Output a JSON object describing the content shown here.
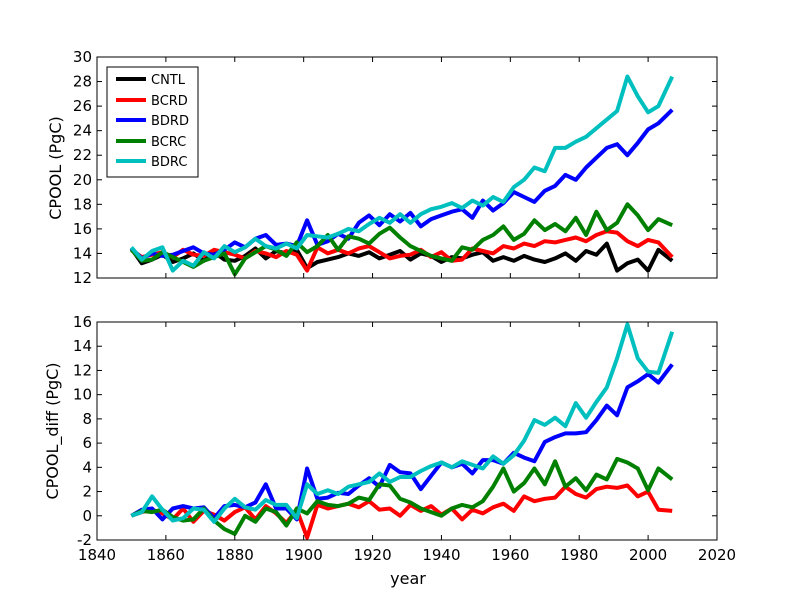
{
  "chart_data": [
    {
      "type": "line",
      "title": "",
      "xlabel": "",
      "ylabel": "CPOOL (PgC)",
      "xlim": [
        1840,
        2020
      ],
      "ylim": [
        12,
        30
      ],
      "yticks": [
        12,
        14,
        16,
        18,
        20,
        22,
        24,
        26,
        28,
        30
      ],
      "show_x_tick_labels": false,
      "legend": "top-left",
      "x": [
        1850,
        1853,
        1856,
        1859,
        1862,
        1865,
        1868,
        1871,
        1874,
        1877,
        1880,
        1883,
        1886,
        1889,
        1892,
        1895,
        1898,
        1901,
        1904,
        1907,
        1910,
        1913,
        1916,
        1919,
        1922,
        1925,
        1928,
        1931,
        1934,
        1937,
        1940,
        1943,
        1946,
        1949,
        1952,
        1955,
        1958,
        1961,
        1964,
        1967,
        1970,
        1973,
        1976,
        1979,
        1982,
        1985,
        1988,
        1991,
        1994,
        1997,
        2000,
        2003,
        2007
      ],
      "series": [
        {
          "name": "CNTL",
          "color": "#000000",
          "values": [
            14.4,
            13.2,
            13.5,
            13.9,
            13.3,
            13.6,
            14.0,
            13.4,
            14.1,
            13.5,
            13.4,
            13.8,
            14.4,
            13.6,
            14.2,
            14.0,
            14.3,
            12.8,
            13.3,
            13.5,
            13.7,
            14.0,
            13.8,
            14.1,
            13.6,
            13.9,
            14.2,
            13.5,
            14.0,
            13.8,
            13.3,
            13.7,
            13.6,
            13.9,
            14.1,
            13.4,
            13.7,
            13.4,
            13.8,
            13.5,
            13.3,
            13.6,
            14.0,
            13.4,
            14.2,
            13.9,
            14.8,
            12.6,
            13.2,
            13.5,
            12.6,
            14.3,
            13.4
          ]
        },
        {
          "name": "BCRD",
          "color": "#ff0000",
          "values": [
            14.3,
            13.7,
            13.9,
            14.1,
            13.7,
            14.3,
            13.9,
            13.8,
            14.3,
            14.1,
            13.9,
            13.6,
            14.2,
            14.0,
            13.7,
            14.2,
            13.9,
            12.6,
            14.5,
            14.0,
            14.3,
            14.0,
            14.4,
            14.6,
            14.1,
            13.6,
            13.8,
            13.9,
            14.3,
            13.7,
            14.1,
            13.4,
            13.5,
            14.4,
            14.2,
            14.0,
            14.6,
            14.4,
            14.8,
            14.6,
            15.0,
            14.9,
            15.1,
            15.3,
            15.0,
            15.5,
            15.8,
            15.7,
            15.0,
            14.6,
            15.1,
            14.9,
            13.7
          ]
        },
        {
          "name": "BDRD",
          "color": "#0000ff",
          "values": [
            14.4,
            13.6,
            14.0,
            13.8,
            13.9,
            14.2,
            14.5,
            14.0,
            13.9,
            14.3,
            14.9,
            14.5,
            15.2,
            15.5,
            14.7,
            14.8,
            14.6,
            16.7,
            14.7,
            15.0,
            15.6,
            15.2,
            16.5,
            17.1,
            16.3,
            17.2,
            16.6,
            17.3,
            16.2,
            16.8,
            17.1,
            17.4,
            17.6,
            16.9,
            18.3,
            17.5,
            18.1,
            19.0,
            18.6,
            18.2,
            19.1,
            19.5,
            20.4,
            20.0,
            21.0,
            21.8,
            22.6,
            22.9,
            22.0,
            23.0,
            24.1,
            24.6,
            25.7
          ]
        },
        {
          "name": "BCRC",
          "color": "#008000",
          "values": [
            14.3,
            13.4,
            13.5,
            14.1,
            13.7,
            13.3,
            12.9,
            13.4,
            13.7,
            14.0,
            12.3,
            13.6,
            14.1,
            14.6,
            14.3,
            13.8,
            14.9,
            14.1,
            14.6,
            15.5,
            14.3,
            15.4,
            15.2,
            14.8,
            15.6,
            16.1,
            15.3,
            14.6,
            14.2,
            13.8,
            13.6,
            13.4,
            14.5,
            14.3,
            15.1,
            15.5,
            16.2,
            15.1,
            15.6,
            16.7,
            15.9,
            16.4,
            15.8,
            16.9,
            15.5,
            17.4,
            15.9,
            16.5,
            18.0,
            17.1,
            15.9,
            16.8,
            16.3
          ]
        },
        {
          "name": "BDRC",
          "color": "#00bfbf",
          "values": [
            14.5,
            13.5,
            14.2,
            14.5,
            12.6,
            13.4,
            13.0,
            14.1,
            13.6,
            14.6,
            14.1,
            14.5,
            15.2,
            14.6,
            14.4,
            14.8,
            14.4,
            15.5,
            15.4,
            15.3,
            15.6,
            16.0,
            15.8,
            16.4,
            16.9,
            16.5,
            17.2,
            16.5,
            17.2,
            17.6,
            17.8,
            18.1,
            17.7,
            18.3,
            17.9,
            18.6,
            18.2,
            19.4,
            20.0,
            21.0,
            20.7,
            22.6,
            22.6,
            23.1,
            23.5,
            24.2,
            24.9,
            25.6,
            28.4,
            26.8,
            25.5,
            26.0,
            28.4
          ]
        }
      ]
    },
    {
      "type": "line",
      "title": "",
      "xlabel": "year",
      "ylabel": "CPOOL_diff (PgC)",
      "xlim": [
        1840,
        2020
      ],
      "ylim": [
        -2,
        16
      ],
      "xticks": [
        1840,
        1860,
        1880,
        1900,
        1920,
        1940,
        1960,
        1980,
        2000,
        2020
      ],
      "yticks": [
        -2,
        0,
        2,
        4,
        6,
        8,
        10,
        12,
        14,
        16
      ],
      "show_x_tick_labels": true,
      "x": [
        1850,
        1853,
        1856,
        1859,
        1862,
        1865,
        1868,
        1871,
        1874,
        1877,
        1880,
        1883,
        1886,
        1889,
        1892,
        1895,
        1898,
        1901,
        1904,
        1907,
        1910,
        1913,
        1916,
        1919,
        1922,
        1925,
        1928,
        1931,
        1934,
        1937,
        1940,
        1943,
        1946,
        1949,
        1952,
        1955,
        1958,
        1961,
        1964,
        1967,
        1970,
        1973,
        1976,
        1979,
        1982,
        1985,
        1988,
        1991,
        1994,
        1997,
        2000,
        2003,
        2007
      ],
      "series": [
        {
          "name": "BCRD",
          "color": "#ff0000",
          "values": [
            0.0,
            0.3,
            0.5,
            0.2,
            -0.3,
            0.6,
            -0.5,
            0.4,
            0.1,
            -0.4,
            0.3,
            0.7,
            -0.3,
            0.8,
            0.2,
            -0.6,
            0.5,
            -1.8,
            0.9,
            0.6,
            0.8,
            1.0,
            0.7,
            1.2,
            0.5,
            0.6,
            0.0,
            0.9,
            0.4,
            0.8,
            0.1,
            0.6,
            -0.3,
            0.5,
            0.2,
            0.7,
            1.0,
            0.4,
            1.6,
            1.2,
            1.4,
            1.5,
            2.4,
            1.8,
            1.5,
            2.2,
            2.4,
            2.3,
            2.5,
            1.6,
            2.0,
            0.5,
            0.4
          ]
        },
        {
          "name": "BDRD",
          "color": "#0000ff",
          "values": [
            0.0,
            0.5,
            0.6,
            -0.3,
            0.6,
            0.8,
            0.6,
            0.7,
            -0.2,
            0.8,
            0.9,
            0.7,
            1.1,
            2.6,
            0.6,
            0.6,
            -0.3,
            3.9,
            1.4,
            1.5,
            1.9,
            1.8,
            2.5,
            3.1,
            2.4,
            4.2,
            3.6,
            3.5,
            2.2,
            3.3,
            4.4,
            4.0,
            4.3,
            3.5,
            4.6,
            4.6,
            4.3,
            5.2,
            4.8,
            4.5,
            6.1,
            6.5,
            6.8,
            6.8,
            6.9,
            7.9,
            9.1,
            8.3,
            10.6,
            11.1,
            11.7,
            11.0,
            12.5
          ]
        },
        {
          "name": "BCRC",
          "color": "#008000",
          "values": [
            0.0,
            0.4,
            0.3,
            0.5,
            -0.1,
            -0.4,
            -0.3,
            0.6,
            -0.4,
            -1.1,
            -1.5,
            0.0,
            -0.5,
            0.6,
            0.3,
            -0.8,
            0.6,
            0.2,
            1.2,
            0.9,
            0.8,
            1.0,
            1.5,
            1.3,
            2.6,
            2.5,
            1.4,
            1.1,
            0.6,
            0.3,
            0.0,
            0.6,
            0.9,
            0.7,
            1.2,
            2.4,
            3.9,
            2.0,
            2.7,
            3.9,
            2.6,
            4.5,
            2.4,
            3.1,
            2.1,
            3.4,
            3.0,
            4.7,
            4.4,
            3.9,
            2.1,
            3.9,
            3.0
          ]
        },
        {
          "name": "BDRC",
          "color": "#00bfbf",
          "values": [
            0.0,
            0.3,
            1.6,
            0.5,
            -0.4,
            -0.2,
            0.6,
            0.5,
            -0.5,
            0.6,
            1.4,
            0.7,
            0.5,
            1.3,
            0.9,
            0.9,
            -0.2,
            2.6,
            1.8,
            2.1,
            1.8,
            2.4,
            2.6,
            2.8,
            3.5,
            2.8,
            3.2,
            3.2,
            3.7,
            4.1,
            4.4,
            4.0,
            4.5,
            4.2,
            3.9,
            4.9,
            4.3,
            5.0,
            6.2,
            7.9,
            7.5,
            8.1,
            7.4,
            9.3,
            8.1,
            9.4,
            10.6,
            13.0,
            15.8,
            13.0,
            11.9,
            11.8,
            15.2
          ]
        }
      ]
    }
  ]
}
